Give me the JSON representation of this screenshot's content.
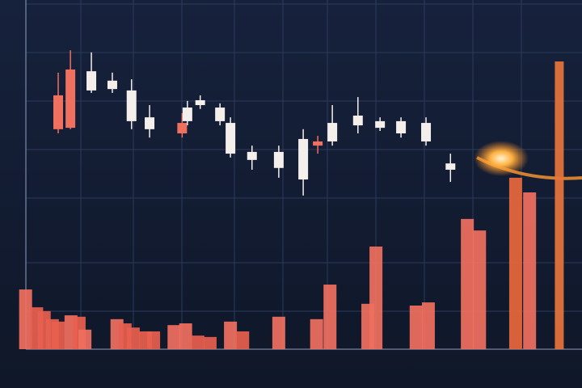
{
  "chart_data": {
    "type": "candlestick",
    "x": [
      10,
      12.1,
      15.7,
      19.3,
      22.6,
      25.7,
      31.3,
      32.2,
      34.4,
      37.8,
      39.6,
      43.3,
      47.9,
      52.1,
      54.6,
      57.1,
      61.5,
      65.3,
      68.9,
      73.2,
      77.4
    ],
    "open": [
      63.0,
      63.4,
      79.6,
      76.9,
      74.1,
      66.4,
      61.8,
      69.2,
      71.3,
      69.2,
      64.8,
      56.5,
      56.5,
      60.2,
      58.3,
      64.8,
      66.9,
      65.3,
      65.3,
      64.8,
      53.2
    ],
    "close": [
      72.7,
      80.1,
      74.1,
      74.5,
      65.3,
      63.0,
      64.8,
      65.3,
      69.9,
      65.3,
      56.0,
      54.2,
      51.9,
      48.6,
      59.5,
      59.5,
      64.1,
      63.4,
      61.8,
      59.5,
      51.4
    ],
    "high": [
      79.2,
      85.6,
      85.0,
      79.2,
      77.3,
      69.9,
      67.6,
      71.1,
      72.7,
      70.4,
      66.4,
      58.3,
      58.3,
      63.0,
      61.1,
      69.9,
      72.2,
      66.4,
      66.4,
      66.4,
      56.0
    ],
    "low": [
      61.8,
      63.0,
      73.4,
      73.4,
      63.0,
      60.6,
      60.6,
      64.1,
      68.8,
      64.1,
      54.9,
      51.4,
      49.1,
      44.0,
      56.0,
      58.3,
      61.8,
      62.5,
      60.6,
      58.3,
      47.9
    ],
    "candle_colors": [
      "#f0705f",
      "#f0705f",
      "#f5efec",
      "#f5efec",
      "#f5efec",
      "#f5efec",
      "#f0705f",
      "#f5efec",
      "#f5efec",
      "#f5efec",
      "#f5efec",
      "#f5efec",
      "#f5efec",
      "#f5efec",
      "#f0705f",
      "#f5efec",
      "#f5efec",
      "#f5efec",
      "#f5efec",
      "#f5efec",
      "#f5efec"
    ],
    "volume": {
      "x": [
        4.4,
        6.3,
        7.6,
        9,
        10,
        12.2,
        13.6,
        14.6,
        20.1,
        21.5,
        22.9,
        25,
        26.4,
        29.9,
        31.9,
        34,
        36.1,
        39.6,
        41.7,
        47.9,
        54.4,
        56.7,
        63.2,
        64.6,
        71.5,
        73.6,
        80.3,
        82.4,
        88.6,
        91,
        96.1
      ],
      "values": [
        17.1,
        12,
        10.9,
        8.6,
        7.9,
        9.7,
        9.3,
        5.6,
        8.6,
        7.4,
        6.2,
        5.1,
        5.1,
        6.9,
        7.4,
        3.9,
        3.5,
        7.9,
        5.1,
        9.3,
        8.6,
        18.5,
        13,
        29.4,
        12.5,
        13.4,
        37.3,
        34,
        49.1,
        44.9,
        82.4
      ],
      "colors": [
        "#f0705f",
        "#e8604f",
        "#e8604f",
        "#e8604f",
        "#e8604f",
        "#f0705f",
        "#e8604f",
        "#f0705f",
        "#f0705f",
        "#e8604f",
        "#e8604f",
        "#e8604f",
        "#e8604f",
        "#f0705f",
        "#f0705f",
        "#e8604f",
        "#e8604f",
        "#f0705f",
        "#e8604f",
        "#f0705f",
        "#f0705f",
        "#f0705f",
        "#f0705f",
        "#f0705f",
        "#f0705f",
        "#f0705f",
        "#f0705f",
        "#f0705f",
        "#e8683c",
        "#f0705f",
        "#e8743c"
      ]
    },
    "xlim": [
      0,
      100
    ],
    "ylim": [
      0,
      100
    ],
    "grid": true
  }
}
